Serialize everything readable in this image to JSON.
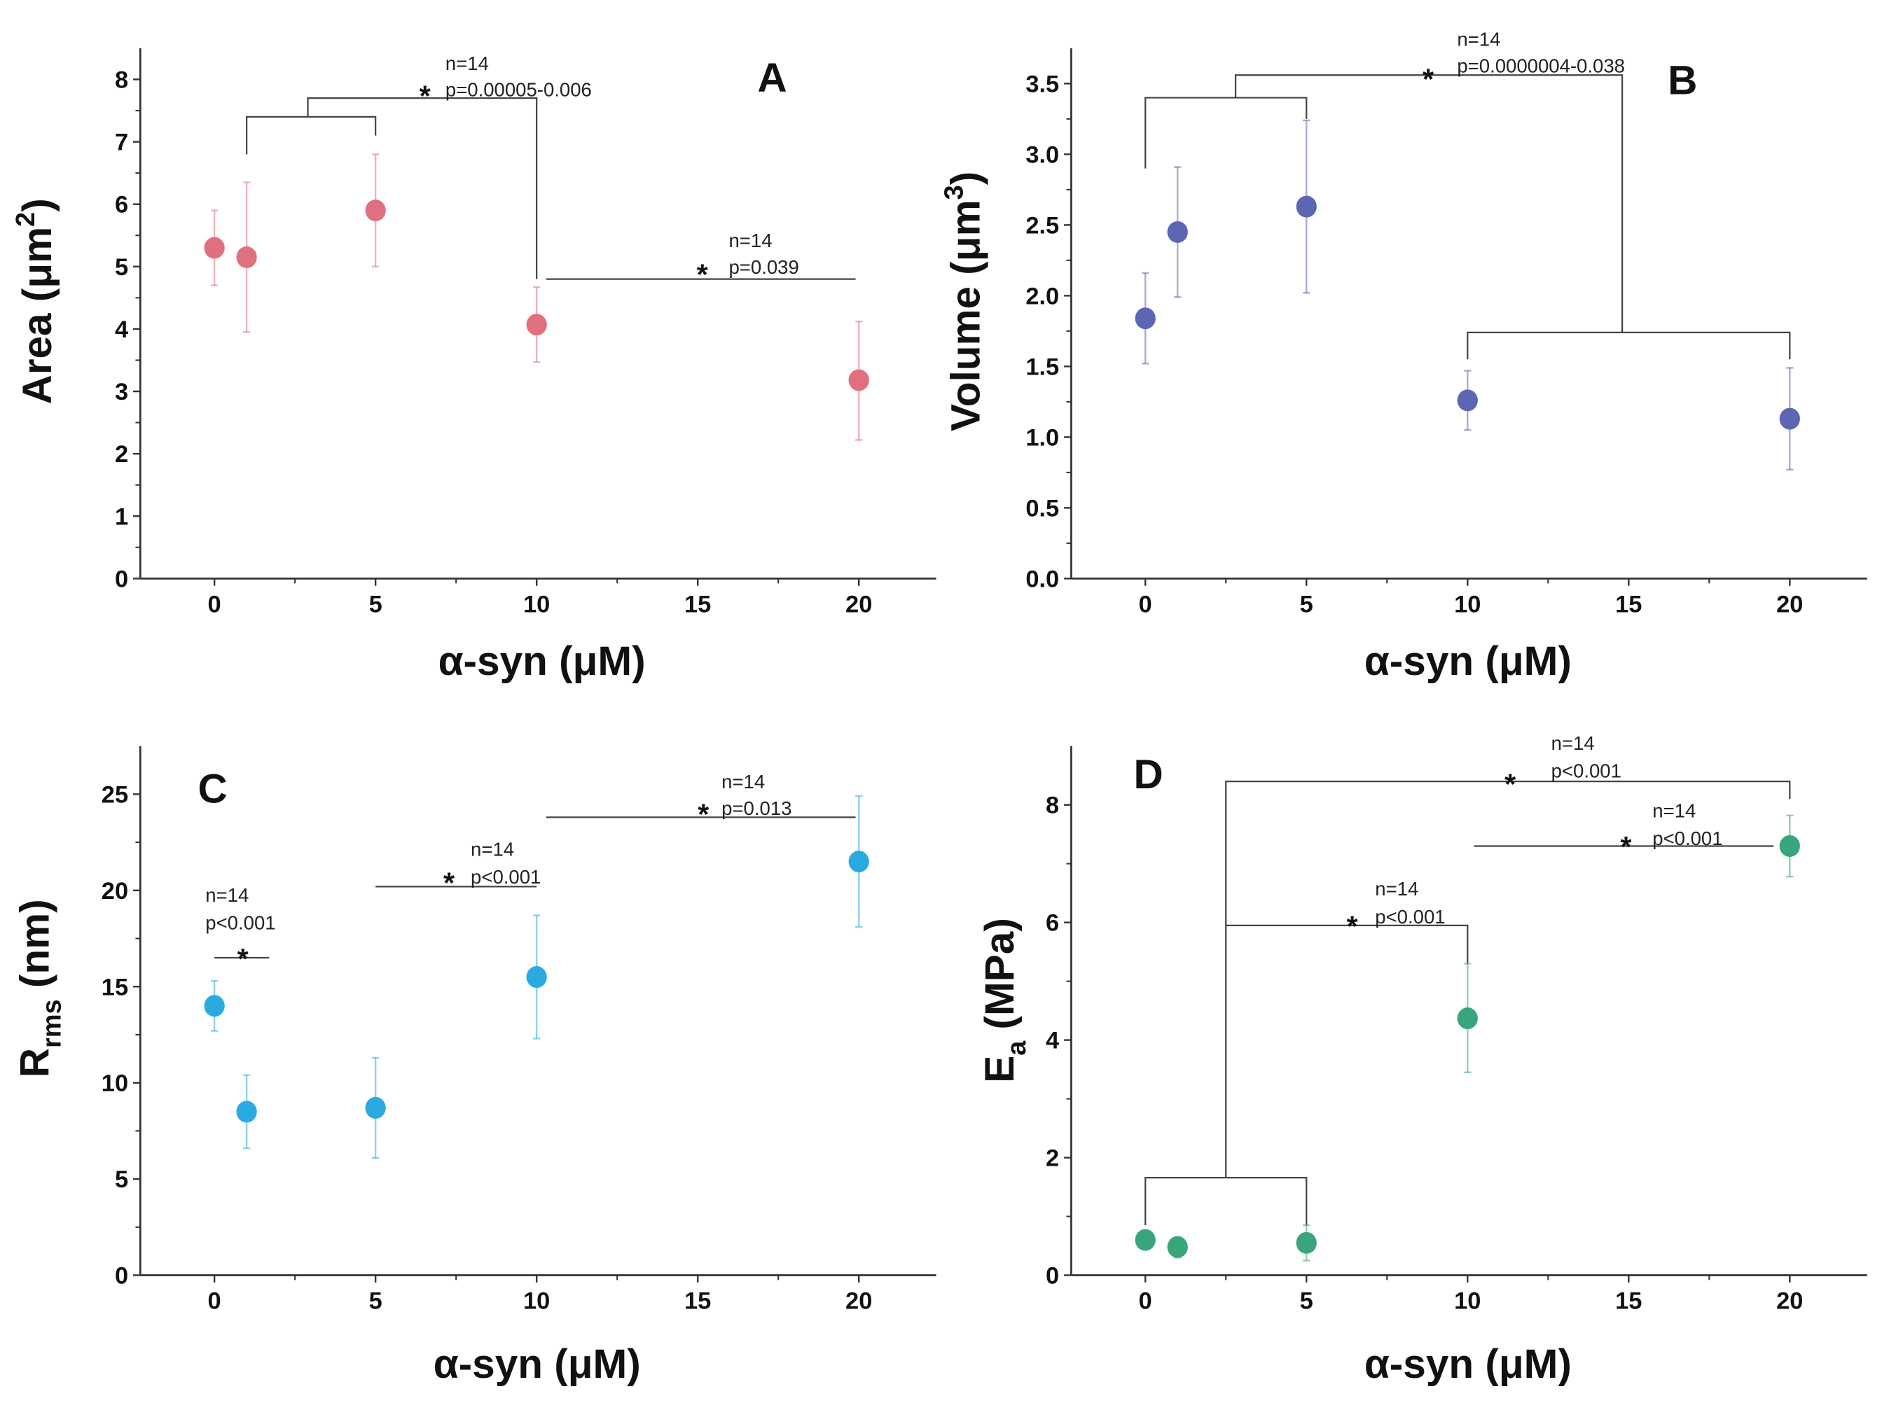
{
  "chart_data": [
    {
      "type": "scatter",
      "panel_letter": "A",
      "xlabel": "α-syn (μM)",
      "ylabel": "Area (μm²)",
      "ylabel_parts": {
        "base": "Area (μm",
        "sup": "2",
        "end": ")"
      },
      "xlim": [
        -2.3,
        22.4
      ],
      "ylim": [
        0,
        8.5
      ],
      "xticks": [
        0,
        5,
        10,
        15,
        20
      ],
      "yticks": [
        0,
        1,
        2,
        3,
        4,
        5,
        6,
        7,
        8
      ],
      "ytick_labels": [
        "0",
        "1",
        "2",
        "3",
        "4",
        "5",
        "6",
        "7",
        "8"
      ],
      "color": "#e0707f",
      "points": [
        {
          "x": 0,
          "y": 5.3,
          "lo": 4.7,
          "hi": 5.9
        },
        {
          "x": 1,
          "y": 5.15,
          "lo": 3.95,
          "hi": 6.35
        },
        {
          "x": 5,
          "y": 5.9,
          "lo": 5.0,
          "hi": 6.8
        },
        {
          "x": 10,
          "y": 4.07,
          "lo": 3.47,
          "hi": 4.67
        },
        {
          "x": 20,
          "y": 3.18,
          "lo": 2.22,
          "hi": 4.12
        }
      ],
      "brackets": [
        [
          [
            1,
            6.8
          ],
          [
            1,
            7.4
          ],
          [
            5,
            7.4
          ],
          [
            5,
            7.1
          ]
        ],
        [
          [
            2.9,
            7.4
          ],
          [
            2.9,
            7.7
          ],
          [
            10,
            7.7
          ],
          [
            10,
            4.8
          ]
        ],
        [
          [
            10.3,
            4.8
          ],
          [
            19.9,
            4.8
          ]
        ]
      ],
      "annotations": [
        {
          "n": "n=14",
          "p": "p=0.00005-0.006",
          "star": "*"
        },
        {
          "n": "n=14",
          "p": "p=0.039",
          "star": "*"
        }
      ]
    },
    {
      "type": "scatter",
      "panel_letter": "B",
      "xlabel": "α-syn (μM)",
      "ylabel": "Volume (μm³)",
      "ylabel_parts": {
        "base": "Volume (μm",
        "sup": "3",
        "end": ")"
      },
      "xlim": [
        -2.3,
        22.4
      ],
      "ylim": [
        0,
        3.75
      ],
      "xticks": [
        0,
        5,
        10,
        15,
        20
      ],
      "yticks": [
        0,
        0.5,
        1.0,
        1.5,
        2.0,
        2.5,
        3.0,
        3.5
      ],
      "ytick_labels": [
        "0.0",
        "0.5",
        "1.0",
        "1.5",
        "2.0",
        "2.5",
        "3.0",
        "3.5"
      ],
      "color": "#5c66b3",
      "points": [
        {
          "x": 0,
          "y": 1.84,
          "lo": 1.52,
          "hi": 2.16
        },
        {
          "x": 1,
          "y": 2.45,
          "lo": 1.99,
          "hi": 2.91
        },
        {
          "x": 5,
          "y": 2.63,
          "lo": 2.02,
          "hi": 3.24
        },
        {
          "x": 10,
          "y": 1.26,
          "lo": 1.05,
          "hi": 1.47
        },
        {
          "x": 20,
          "y": 1.13,
          "lo": 0.77,
          "hi": 1.49
        }
      ],
      "brackets": [
        [
          [
            0,
            2.9
          ],
          [
            0,
            3.4
          ],
          [
            5,
            3.4
          ],
          [
            5,
            3.25
          ]
        ],
        [
          [
            2.8,
            3.4
          ],
          [
            2.8,
            3.56
          ],
          [
            14.8,
            3.56
          ],
          [
            14.8,
            1.74
          ]
        ],
        [
          [
            10,
            1.55
          ],
          [
            10,
            1.74
          ],
          [
            20,
            1.74
          ],
          [
            20,
            1.55
          ]
        ]
      ],
      "annotations": [
        {
          "n": "n=14",
          "p": "p=0.0000004-0.038",
          "star": "*"
        }
      ]
    },
    {
      "type": "scatter",
      "panel_letter": "C",
      "xlabel": "α-syn (μM)",
      "ylabel": "Rrms (nm)",
      "ylabel_parts": {
        "base": "R",
        "sub": "rms",
        "end": " (nm)"
      },
      "xlim": [
        -2.3,
        22.4
      ],
      "ylim": [
        0,
        27.5
      ],
      "xticks": [
        0,
        5,
        10,
        15,
        20
      ],
      "yticks": [
        0,
        5,
        10,
        15,
        20,
        25
      ],
      "ytick_labels": [
        "0",
        "5",
        "10",
        "15",
        "20",
        "25"
      ],
      "color": "#29abe2",
      "points": [
        {
          "x": 0,
          "y": 14.0,
          "lo": 12.7,
          "hi": 15.3
        },
        {
          "x": 1,
          "y": 8.5,
          "lo": 6.6,
          "hi": 10.4
        },
        {
          "x": 5,
          "y": 8.7,
          "lo": 6.1,
          "hi": 11.3
        },
        {
          "x": 10,
          "y": 15.5,
          "lo": 12.3,
          "hi": 18.7
        },
        {
          "x": 20,
          "y": 21.5,
          "lo": 18.1,
          "hi": 24.9
        }
      ],
      "brackets": [
        [
          [
            0,
            16.5
          ],
          [
            1.7,
            16.5
          ]
        ],
        [
          [
            5,
            20.2
          ],
          [
            10,
            20.2
          ]
        ],
        [
          [
            10.3,
            23.8
          ],
          [
            19.9,
            23.8
          ]
        ]
      ],
      "annotations": [
        {
          "n": "n=14",
          "p": "p<0.001",
          "star": "*"
        },
        {
          "n": "n=14",
          "p": "p<0.001",
          "star": "*"
        },
        {
          "n": "n=14",
          "p": "p=0.013",
          "star": "*"
        }
      ]
    },
    {
      "type": "scatter",
      "panel_letter": "D",
      "xlabel": "α-syn (μM)",
      "ylabel": "Ea (MPa)",
      "ylabel_parts": {
        "base": "E",
        "sub": "a",
        "end": " (MPa)"
      },
      "xlim": [
        -2.3,
        22.4
      ],
      "ylim": [
        0,
        9
      ],
      "xticks": [
        0,
        5,
        10,
        15,
        20
      ],
      "yticks": [
        0,
        2,
        4,
        6,
        8
      ],
      "ytick_labels": [
        "0",
        "2",
        "4",
        "6",
        "8"
      ],
      "color": "#3aa57a",
      "points": [
        {
          "x": 0,
          "y": 0.6,
          "lo": 0.45,
          "hi": 0.75
        },
        {
          "x": 1,
          "y": 0.48,
          "lo": 0.3,
          "hi": 0.65
        },
        {
          "x": 5,
          "y": 0.55,
          "lo": 0.25,
          "hi": 0.85
        },
        {
          "x": 10,
          "y": 4.37,
          "lo": 3.45,
          "hi": 5.3
        },
        {
          "x": 20,
          "y": 7.3,
          "lo": 6.78,
          "hi": 7.82
        }
      ],
      "brackets": [
        [
          [
            0,
            0.85
          ],
          [
            0,
            1.66
          ],
          [
            5,
            1.66
          ],
          [
            5,
            0.85
          ]
        ],
        [
          [
            2.5,
            1.66
          ],
          [
            2.5,
            8.4
          ],
          [
            20,
            8.4
          ],
          [
            20,
            8.1
          ]
        ],
        [
          [
            2.5,
            5.95
          ],
          [
            10,
            5.95
          ],
          [
            10,
            5.3
          ]
        ],
        [
          [
            10.2,
            7.3
          ],
          [
            19.5,
            7.3
          ]
        ]
      ],
      "annotations": [
        {
          "n": "n=14",
          "p": "p<0.001",
          "star": "*"
        },
        {
          "n": "n=14",
          "p": "p<0.001",
          "star": "*"
        },
        {
          "n": "n=14",
          "p": "p<0.001",
          "star": "*"
        }
      ]
    }
  ]
}
